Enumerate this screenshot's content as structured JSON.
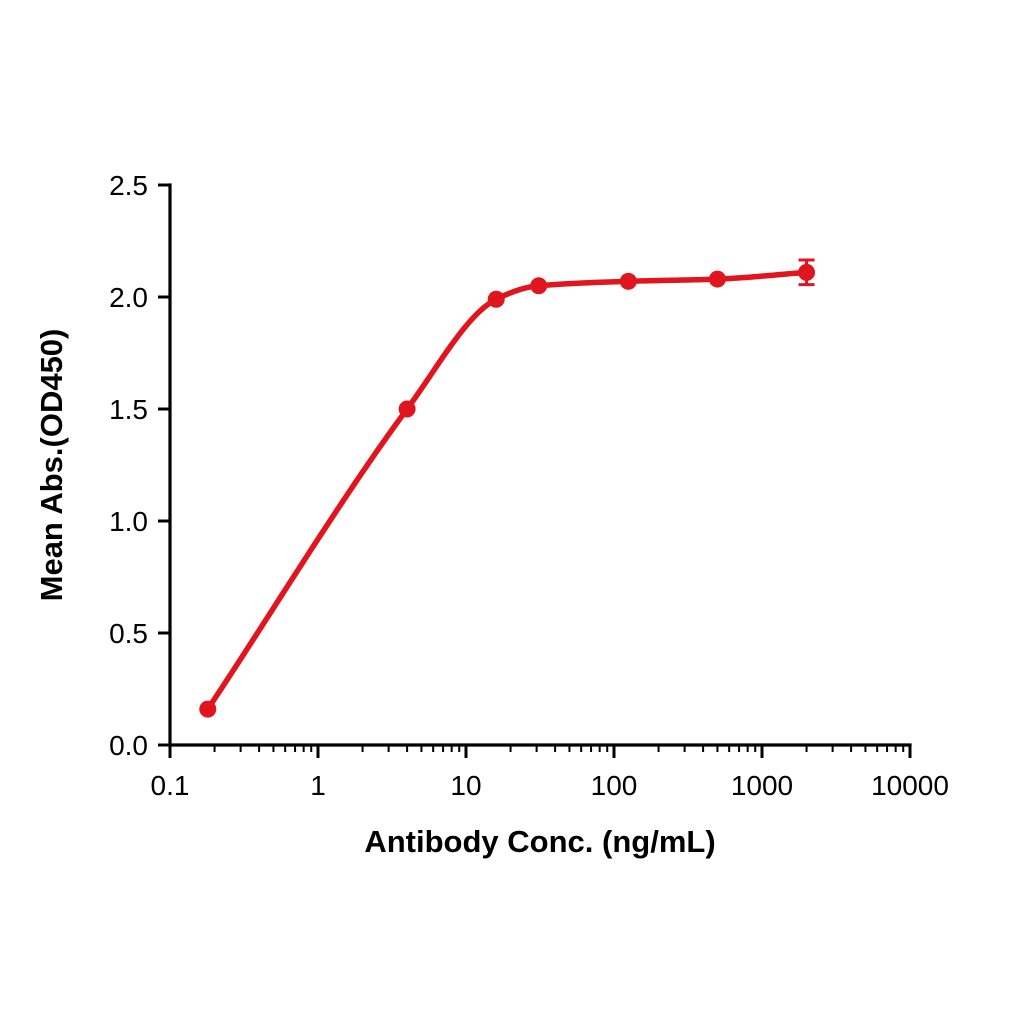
{
  "chart_data": {
    "type": "line",
    "title": "",
    "xlabel": "Antibody Conc. (ng/mL)",
    "ylabel": "Mean Abs.(OD450)",
    "x_scale": "log",
    "xlim": [
      0.1,
      10000
    ],
    "ylim": [
      0.0,
      2.5
    ],
    "x_ticks": [
      0.1,
      1,
      10,
      100,
      1000,
      10000
    ],
    "x_tick_labels": [
      "0.1",
      "1",
      "10",
      "100",
      "1000",
      "10000"
    ],
    "y_ticks": [
      0.0,
      0.5,
      1.0,
      1.5,
      2.0,
      2.5
    ],
    "y_tick_labels": [
      "0.0",
      "0.5",
      "1.0",
      "1.5",
      "2.0",
      "2.5"
    ],
    "grid": false,
    "legend": false,
    "series": [
      {
        "name": "antibody-binding-curve",
        "color": "#e0151d",
        "x": [
          0.18,
          4,
          16,
          31,
          125,
          500,
          2000
        ],
        "y": [
          0.16,
          1.5,
          1.99,
          2.05,
          2.07,
          2.08,
          2.11
        ],
        "y_err": [
          0,
          0,
          0,
          0,
          0,
          0,
          0.055
        ]
      }
    ]
  },
  "style": {
    "axis_color": "#000000",
    "background": "#ffffff"
  }
}
